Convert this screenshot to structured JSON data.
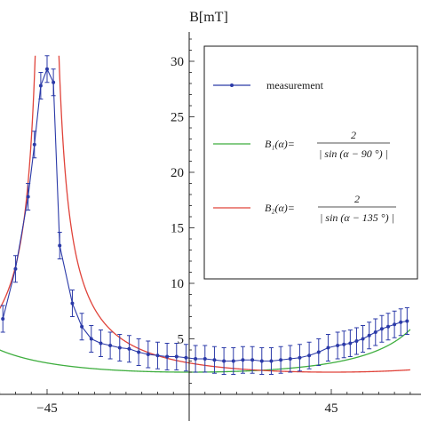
{
  "chart_data": {
    "type": "line",
    "ylabel": "B[mT]",
    "xlim": [
      -62.5,
      70
    ],
    "ylim": [
      0,
      33.5
    ],
    "x_ticks": [
      -45,
      45
    ],
    "x_tick_labels": [
      "−45",
      "45"
    ],
    "y_ticks": [
      5,
      10,
      15,
      20,
      25,
      30
    ],
    "y_tick_labels": [
      "5",
      "10",
      "15",
      "20",
      "25",
      "30"
    ],
    "grid": false,
    "legend_position": "top-right",
    "series": [
      {
        "name": "measurement",
        "color": "#2b3aa8",
        "style": "line-with-markers-and-error-bars",
        "x": [
          -59,
          -55,
          -51,
          -49,
          -47,
          -45,
          -43,
          -41,
          -37,
          -34,
          -31,
          -28,
          -25,
          -22,
          -19,
          -16,
          -13,
          -10,
          -7,
          -4,
          -1,
          2,
          5,
          8,
          11,
          14,
          17,
          20,
          23,
          26,
          29,
          32,
          35,
          38,
          41,
          44,
          47,
          49,
          51,
          53,
          55,
          57,
          59,
          61,
          63,
          65,
          67,
          69
        ],
        "y": [
          6.8,
          11.3,
          17.8,
          22.5,
          27.8,
          29.3,
          28.1,
          13.4,
          8.2,
          6.1,
          5.0,
          4.6,
          4.4,
          4.2,
          4.1,
          3.8,
          3.6,
          3.5,
          3.4,
          3.4,
          3.3,
          3.2,
          3.2,
          3.1,
          3.0,
          3.0,
          3.1,
          3.1,
          3.0,
          3.0,
          3.1,
          3.2,
          3.3,
          3.5,
          3.8,
          4.2,
          4.4,
          4.5,
          4.6,
          4.8,
          5.0,
          5.3,
          5.6,
          5.9,
          6.1,
          6.3,
          6.5,
          6.6
        ],
        "error": 1.2
      },
      {
        "name": "B1(α)=2/|sin(α − 90°)|",
        "color": "#3fae3f",
        "formula": "2/|sin(a-90)|"
      },
      {
        "name": "B2(α)=2/|sin(α − 135°)|",
        "color": "#e0433a",
        "formula": "2/|sin(a-135)|"
      }
    ]
  },
  "legend": {
    "measurement": "measurement",
    "b1_lhs": "B₁(α)=",
    "b1_num": "2",
    "b1_den": "| sin (α − 90 °) |",
    "b2_lhs": "B₂(α)=",
    "b2_num": "2",
    "b2_den": "| sin (α − 135 °) |"
  }
}
